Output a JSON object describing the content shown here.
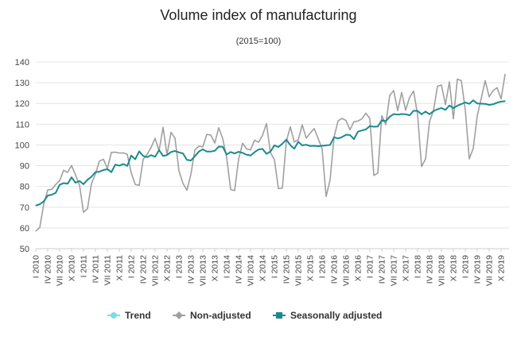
{
  "chart_data": {
    "type": "line",
    "title": "Volume index of manufacturing",
    "subtitle": "(2015=100)",
    "xlabel": "",
    "ylabel": "",
    "ylim": [
      50,
      140
    ],
    "yticks": [
      50,
      60,
      70,
      80,
      90,
      100,
      110,
      120,
      130,
      140
    ],
    "grid": true,
    "legend_position": "bottom",
    "start": {
      "year": 2010,
      "month": 1
    },
    "x_tick_labels": [
      "I 2010",
      "IV 2010",
      "VII 2010",
      "X 2010",
      "I 2011",
      "IV 2011",
      "VII 2011",
      "X 2011",
      "I 2012",
      "IV 2012",
      "VII 2012",
      "X 2012",
      "I 2013",
      "IV 2013",
      "VII 2013",
      "X 2013",
      "I 2014",
      "IV 2014",
      "VII 2014",
      "X 2014",
      "I 2015",
      "IV 2015",
      "VII 2015",
      "X 2015",
      "I 2016",
      "IV 2016",
      "VII 2016",
      "X 2016",
      "I 2017",
      "IV 2017",
      "VII 2017",
      "X 2017",
      "I 2018",
      "IV 2018",
      "VII 2018",
      "X 2018",
      "I 2019",
      "IV 2019",
      "VII 2019",
      "X 2019"
    ],
    "series": [
      {
        "name": "Trend",
        "color": "#7fdbe8",
        "marker": "circle",
        "values": []
      },
      {
        "name": "Non-adjusted",
        "color": "#a0a0a0",
        "marker": "diamond",
        "values": [
          58.5,
          60.2,
          71.5,
          78.3,
          78.6,
          80.9,
          82.8,
          87.8,
          86.8,
          90.1,
          85.5,
          80.6,
          67.5,
          69.3,
          81.3,
          86.1,
          92.2,
          93.1,
          88.6,
          96.4,
          96.5,
          96.1,
          96.2,
          95.5,
          86.5,
          81.0,
          80.5,
          93.1,
          95.5,
          98.8,
          103.2,
          97.2,
          108.5,
          95.2,
          106.1,
          103.3,
          87.5,
          81.5,
          78.2,
          85.8,
          97.6,
          99.4,
          99.1,
          105.1,
          104.8,
          100.9,
          108.3,
          103.1,
          93.8,
          78.5,
          78.0,
          93.2,
          100.8,
          98.1,
          97.6,
          102.3,
          101.3,
          104.6,
          110.3,
          96.3,
          92.9,
          79.0,
          79.2,
          101.8,
          108.7,
          101.4,
          102.5,
          109.7,
          103.3,
          105.7,
          107.9,
          103.1,
          98.1,
          75.1,
          83.2,
          103.8,
          111.6,
          112.8,
          111.8,
          107.3,
          111.2,
          111.5,
          112.6,
          115.3,
          112.7,
          85.3,
          86.4,
          114.1,
          109.8,
          123.9,
          126.2,
          116.5,
          125.3,
          116.8,
          123.0,
          126.0,
          114.6,
          89.6,
          93.2,
          111.3,
          116.5,
          128.3,
          128.9,
          119.4,
          130.4,
          112.6,
          131.7,
          131.0,
          116.8,
          93.3,
          98.4,
          114.0,
          122.4,
          131.0,
          123.2,
          126.2,
          127.6,
          122.2,
          134.1
        ]
      },
      {
        "name": "Seasonally adjusted",
        "color": "#1a8a8f",
        "marker": "square",
        "values": [
          70.8,
          71.4,
          72.8,
          75.6,
          76.0,
          76.9,
          80.8,
          81.6,
          81.3,
          84.4,
          81.8,
          82.6,
          81.1,
          83.2,
          84.7,
          86.9,
          87.1,
          87.9,
          88.3,
          86.9,
          90.5,
          90.0,
          90.8,
          89.9,
          94.9,
          93.1,
          96.9,
          94.7,
          94.1,
          95.1,
          94.3,
          97.5,
          94.7,
          95.1,
          96.6,
          97.1,
          96.4,
          95.9,
          92.8,
          92.5,
          94.6,
          96.8,
          97.9,
          96.8,
          96.8,
          97.2,
          99.2,
          99.1,
          95.4,
          96.6,
          95.9,
          96.7,
          96.2,
          95.3,
          94.9,
          96.5,
          97.8,
          98.1,
          95.7,
          96.8,
          99.8,
          99.0,
          100.6,
          102.6,
          99.9,
          98.2,
          101.5,
          99.8,
          100.1,
          99.5,
          99.6,
          99.4,
          99.6,
          99.8,
          100.0,
          103.7,
          103.1,
          103.8,
          104.9,
          104.8,
          102.8,
          106.4,
          107.0,
          107.5,
          109.1,
          108.8,
          108.9,
          111.9,
          111.5,
          113.6,
          114.9,
          114.6,
          114.9,
          114.8,
          114.3,
          116.5,
          116.4,
          114.8,
          116.1,
          114.8,
          116.3,
          117.2,
          117.8,
          116.9,
          119.0,
          117.8,
          118.9,
          119.7,
          120.5,
          119.8,
          121.5,
          120.0,
          119.9,
          119.8,
          119.3,
          119.6,
          120.4,
          120.9,
          121.1
        ]
      }
    ]
  }
}
